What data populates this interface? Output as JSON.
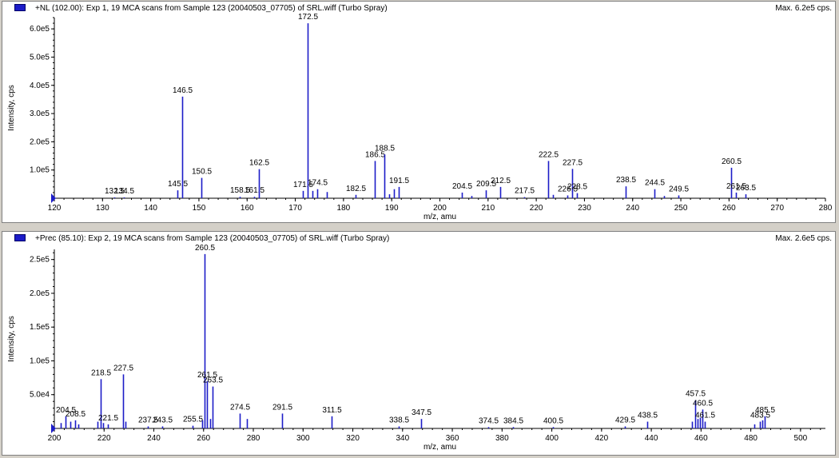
{
  "chart_data": [
    {
      "type": "bar",
      "title": "+NL (102.00): Exp 1, 19 MCA scans from Sample 123 (20040503_07705) of SRL.wiff (Turbo Spray)",
      "max_label": "Max. 6.2e5 cps.",
      "xlabel": "m/z, amu",
      "ylabel": "Intensity, cps",
      "xlim": [
        120,
        280
      ],
      "ylim": [
        0,
        640000
      ],
      "x_ticks": [
        120,
        130,
        140,
        150,
        160,
        170,
        180,
        190,
        200,
        210,
        220,
        230,
        240,
        250,
        260,
        270,
        280
      ],
      "y_ticks": [
        {
          "v": 100000,
          "label": "1.0e5"
        },
        {
          "v": 200000,
          "label": "2.0e5"
        },
        {
          "v": 300000,
          "label": "3.0e5"
        },
        {
          "v": 400000,
          "label": "4.0e5"
        },
        {
          "v": 500000,
          "label": "5.0e5"
        },
        {
          "v": 600000,
          "label": "6.0e5"
        }
      ],
      "peaks": [
        {
          "x": 132.5,
          "y": 3000,
          "label": "132.5"
        },
        {
          "x": 134.5,
          "y": 3000,
          "label": "134.5"
        },
        {
          "x": 145.5,
          "y": 28000,
          "label": "145.5"
        },
        {
          "x": 146.5,
          "y": 360000,
          "label": "146.5"
        },
        {
          "x": 150.5,
          "y": 72000,
          "label": "150.5"
        },
        {
          "x": 158.5,
          "y": 5000,
          "label": "158.5"
        },
        {
          "x": 161.5,
          "y": 5000,
          "label": "161.5"
        },
        {
          "x": 162.5,
          "y": 103000,
          "label": "162.5"
        },
        {
          "x": 171.5,
          "y": 26000,
          "label": "171.5"
        },
        {
          "x": 172.5,
          "y": 620000,
          "label": "172.5"
        },
        {
          "x": 173.5,
          "y": 26000
        },
        {
          "x": 174.5,
          "y": 32000,
          "label": "174.5"
        },
        {
          "x": 176.5,
          "y": 22000
        },
        {
          "x": 182.5,
          "y": 12000,
          "label": "182.5"
        },
        {
          "x": 186.5,
          "y": 132000,
          "label": "186.5"
        },
        {
          "x": 188.5,
          "y": 155000,
          "label": "188.5"
        },
        {
          "x": 189.5,
          "y": 14000
        },
        {
          "x": 190.5,
          "y": 32000
        },
        {
          "x": 191.5,
          "y": 40000,
          "label": "191.5"
        },
        {
          "x": 204.5,
          "y": 20000,
          "label": "204.5"
        },
        {
          "x": 206.5,
          "y": 8000
        },
        {
          "x": 209.5,
          "y": 28000,
          "label": "209.5"
        },
        {
          "x": 212.5,
          "y": 40000,
          "label": "212.5"
        },
        {
          "x": 217.5,
          "y": 4000,
          "label": "217.5"
        },
        {
          "x": 222.5,
          "y": 132000,
          "label": "222.5"
        },
        {
          "x": 223.5,
          "y": 12000
        },
        {
          "x": 226.5,
          "y": 10000,
          "label": "226.5"
        },
        {
          "x": 227.5,
          "y": 104000,
          "label": "227.5"
        },
        {
          "x": 228.5,
          "y": 18000,
          "label": "228.5"
        },
        {
          "x": 238.5,
          "y": 42000,
          "label": "238.5"
        },
        {
          "x": 244.5,
          "y": 32000,
          "label": "244.5"
        },
        {
          "x": 246.5,
          "y": 8000
        },
        {
          "x": 249.5,
          "y": 10000,
          "label": "249.5"
        },
        {
          "x": 260.5,
          "y": 108000,
          "label": "260.5"
        },
        {
          "x": 261.5,
          "y": 20000,
          "label": "261.5"
        },
        {
          "x": 263.5,
          "y": 14000,
          "label": "263.5"
        }
      ]
    },
    {
      "type": "bar",
      "title": "+Prec (85.10): Exp 2, 19 MCA scans from Sample 123 (20040503_07705) of SRL.wiff (Turbo Spray)",
      "max_label": "Max. 2.6e5 cps.",
      "xlabel": "m/z, amu",
      "ylabel": "Intensity, cps",
      "xlim": [
        200,
        510
      ],
      "ylim": [
        0,
        265000
      ],
      "x_ticks": [
        200,
        220,
        240,
        260,
        280,
        300,
        320,
        340,
        360,
        380,
        400,
        420,
        440,
        460,
        480,
        500
      ],
      "y_ticks": [
        {
          "v": 50000,
          "label": "5.0e4"
        },
        {
          "v": 100000,
          "label": "1.0e5"
        },
        {
          "v": 150000,
          "label": "1.5e5"
        },
        {
          "v": 200000,
          "label": "2.0e5"
        },
        {
          "v": 250000,
          "label": "2.5e5"
        }
      ],
      "peaks": [
        {
          "x": 202.5,
          "y": 8000
        },
        {
          "x": 204.5,
          "y": 18000,
          "label": "204.5"
        },
        {
          "x": 206.5,
          "y": 10000
        },
        {
          "x": 208.5,
          "y": 12000,
          "label": "208.5"
        },
        {
          "x": 209.5,
          "y": 6000
        },
        {
          "x": 217.5,
          "y": 10000
        },
        {
          "x": 218.5,
          "y": 73000,
          "label": "218.5"
        },
        {
          "x": 219.5,
          "y": 8000
        },
        {
          "x": 221.5,
          "y": 6000,
          "label": "221.5"
        },
        {
          "x": 227.5,
          "y": 80000,
          "label": "227.5"
        },
        {
          "x": 228.5,
          "y": 10000
        },
        {
          "x": 237.5,
          "y": 3000,
          "label": "237.5"
        },
        {
          "x": 243.5,
          "y": 3000,
          "label": "243.5"
        },
        {
          "x": 255.5,
          "y": 4000,
          "label": "255.5"
        },
        {
          "x": 259.5,
          "y": 12000
        },
        {
          "x": 260.5,
          "y": 258000,
          "label": "260.5"
        },
        {
          "x": 261.5,
          "y": 70000,
          "label": "261.5"
        },
        {
          "x": 262.5,
          "y": 14000
        },
        {
          "x": 263.5,
          "y": 62000,
          "label": "263.5"
        },
        {
          "x": 274.5,
          "y": 22000,
          "label": "274.5"
        },
        {
          "x": 277.5,
          "y": 14000
        },
        {
          "x": 291.5,
          "y": 22000,
          "label": "291.5"
        },
        {
          "x": 311.5,
          "y": 18000,
          "label": "311.5"
        },
        {
          "x": 338.5,
          "y": 3000,
          "label": "338.5"
        },
        {
          "x": 347.5,
          "y": 14000,
          "label": "347.5"
        },
        {
          "x": 374.5,
          "y": 2000,
          "label": "374.5"
        },
        {
          "x": 384.5,
          "y": 2000,
          "label": "384.5"
        },
        {
          "x": 400.5,
          "y": 2000,
          "label": "400.5"
        },
        {
          "x": 429.5,
          "y": 3000,
          "label": "429.5"
        },
        {
          "x": 438.5,
          "y": 10000,
          "label": "438.5"
        },
        {
          "x": 456.5,
          "y": 10000
        },
        {
          "x": 457.5,
          "y": 42000,
          "label": "457.5"
        },
        {
          "x": 458.5,
          "y": 14000
        },
        {
          "x": 459.5,
          "y": 16000
        },
        {
          "x": 460.5,
          "y": 28000,
          "label": "460.5"
        },
        {
          "x": 461.5,
          "y": 10000,
          "label": "461.5"
        },
        {
          "x": 481.5,
          "y": 6000
        },
        {
          "x": 483.5,
          "y": 10000,
          "label": "483.5"
        },
        {
          "x": 484.5,
          "y": 12000
        },
        {
          "x": 485.5,
          "y": 18000,
          "label": "485.5"
        }
      ]
    }
  ]
}
